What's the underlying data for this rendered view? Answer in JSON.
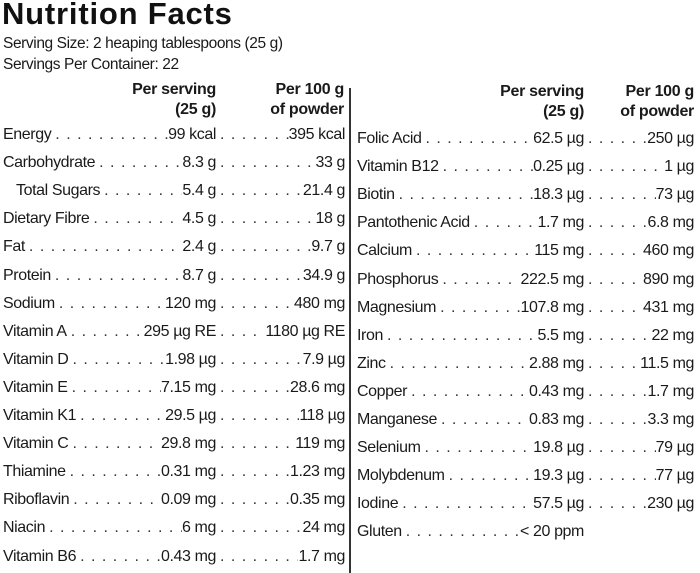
{
  "title": "Nutrition Facts",
  "serving_size": "Serving Size: 2 heaping tablespoons (25 g)",
  "servings_per_container": "Servings Per Container: 22",
  "headers": {
    "per_serving": "Per serving",
    "per_serving_sub": "(25 g)",
    "per_100g": "Per 100 g",
    "per_100g_sub": "of powder"
  },
  "left_rows": [
    {
      "name": "Energy",
      "serving": "99 kcal",
      "per100": "395 kcal"
    },
    {
      "name": "Carbohydrate",
      "serving": "8.3 g",
      "per100": "33 g"
    },
    {
      "name": "Total Sugars",
      "serving": "5.4 g",
      "per100": "21.4 g"
    },
    {
      "name": "Dietary Fibre",
      "serving": "4.5 g",
      "per100": "18 g"
    },
    {
      "name": "Fat",
      "serving": "2.4 g",
      "per100": "9.7 g"
    },
    {
      "name": "Protein",
      "serving": "8.7 g",
      "per100": "34.9 g"
    },
    {
      "name": "Sodium",
      "serving": "120 mg",
      "per100": "480 mg"
    },
    {
      "name": "Vitamin A",
      "serving": "295 µg RE",
      "per100": "1180 µg RE"
    },
    {
      "name": "Vitamin D",
      "serving": "1.98 µg",
      "per100": "7.9 µg"
    },
    {
      "name": "Vitamin E",
      "serving": "7.15 mg",
      "per100": "28.6 mg"
    },
    {
      "name": "Vitamin K1",
      "serving": "29.5 µg",
      "per100": "118 µg"
    },
    {
      "name": "Vitamin C",
      "serving": "29.8 mg",
      "per100": "119 mg"
    },
    {
      "name": "Thiamine",
      "serving": "0.31 mg",
      "per100": "1.23 mg"
    },
    {
      "name": "Riboflavin",
      "serving": "0.09 mg",
      "per100": "0.35 mg"
    },
    {
      "name": "Niacin",
      "serving": "6 mg",
      "per100": "24 mg"
    },
    {
      "name": "Vitamin B6",
      "serving": "0.43 mg",
      "per100": "1.7 mg"
    }
  ],
  "right_rows": [
    {
      "name": "Folic Acid",
      "serving": "62.5 µg",
      "per100": "250 µg"
    },
    {
      "name": "Vitamin B12",
      "serving": "0.25 µg",
      "per100": "1 µg"
    },
    {
      "name": "Biotin",
      "serving": "18.3 µg",
      "per100": "73 µg"
    },
    {
      "name": "Pantothenic Acid",
      "serving": "1.7 mg",
      "per100": "6.8 mg"
    },
    {
      "name": "Calcium",
      "serving": "115 mg",
      "per100": "460 mg"
    },
    {
      "name": "Phosphorus",
      "serving": "222.5 mg",
      "per100": "890 mg"
    },
    {
      "name": "Magnesium",
      "serving": "107.8 mg",
      "per100": "431 mg"
    },
    {
      "name": "Iron",
      "serving": "5.5 mg",
      "per100": "22 mg"
    },
    {
      "name": "Zinc",
      "serving": "2.88 mg",
      "per100": "11.5 mg"
    },
    {
      "name": "Copper",
      "serving": "0.43 mg",
      "per100": "1.7 mg"
    },
    {
      "name": "Manganese",
      "serving": "0.83 mg",
      "per100": "3.3 mg"
    },
    {
      "name": "Selenium",
      "serving": "19.8 µg",
      "per100": "79 µg"
    },
    {
      "name": "Molybdenum",
      "serving": "19.3 µg",
      "per100": "77 µg"
    },
    {
      "name": "Iodine",
      "serving": "57.5 µg",
      "per100": "230 µg"
    },
    {
      "name": "Gluten",
      "serving": "< 20 ppm",
      "per100": null
    }
  ]
}
